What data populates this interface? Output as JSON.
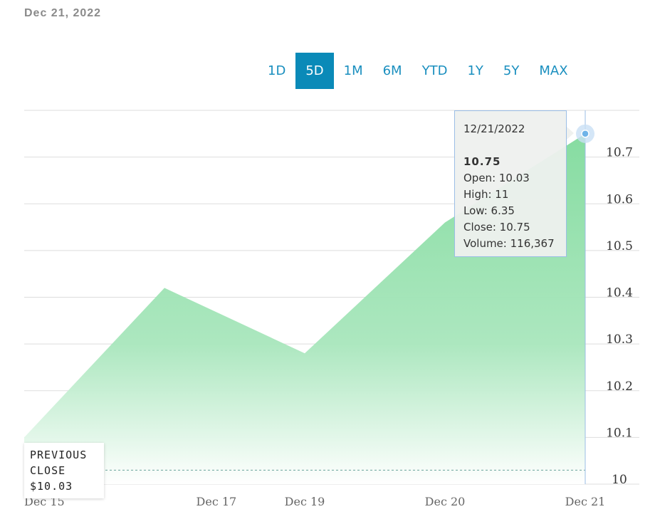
{
  "header": {
    "date": "Dec 21, 2022"
  },
  "range_tabs": [
    {
      "label": "1D",
      "active": false
    },
    {
      "label": "5D",
      "active": true
    },
    {
      "label": "1M",
      "active": false
    },
    {
      "label": "6M",
      "active": false
    },
    {
      "label": "YTD",
      "active": false
    },
    {
      "label": "1Y",
      "active": false
    },
    {
      "label": "5Y",
      "active": false
    },
    {
      "label": "MAX",
      "active": false
    }
  ],
  "tooltip": {
    "date": "12/21/2022",
    "value": "10.75",
    "open": "Open: 10.03",
    "high": "High: 11",
    "low": "Low: 6.35",
    "close": "Close: 10.75",
    "volume": "Volume: 116,367"
  },
  "previous_close": {
    "line1": "PREVIOUS",
    "line2": "CLOSE",
    "value": "$10.03"
  },
  "colors": {
    "accent": "#0a8ab8",
    "area_top": "#86dca1",
    "area_bottom": "#ffffff",
    "grid": "#dddddd",
    "prev_close_line": "#6aa39a"
  },
  "chart_data": {
    "type": "area",
    "x_ticks": [
      {
        "label": "Dec 15",
        "t": 0
      },
      {
        "label": "Dec 17",
        "t": 1.37
      },
      {
        "label": "Dec 19",
        "t": 2.0
      },
      {
        "label": "Dec 20",
        "t": 3.0
      },
      {
        "label": "Dec 21",
        "t": 4.0
      }
    ],
    "points": [
      {
        "t": 0.0,
        "y": 10.1
      },
      {
        "t": 1.0,
        "y": 10.42
      },
      {
        "t": 2.0,
        "y": 10.28
      },
      {
        "t": 3.0,
        "y": 10.56
      },
      {
        "t": 4.0,
        "y": 10.75
      }
    ],
    "previous_close": 10.03,
    "y_ticks": [
      10,
      10.1,
      10.2,
      10.3,
      10.4,
      10.5,
      10.6,
      10.7
    ],
    "ylim": [
      10,
      10.8
    ],
    "xlim": [
      0,
      4
    ],
    "grid": true,
    "axis_position": "right"
  }
}
